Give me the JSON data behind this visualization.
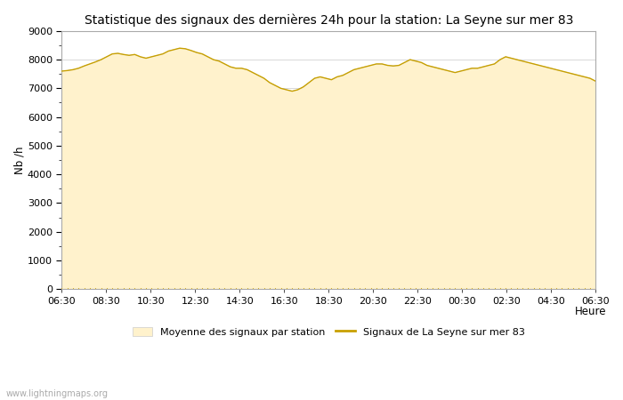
{
  "title": "Statistique des signaux des dernières 24h pour la station: La Seyne sur mer 83",
  "ylabel": "Nb /h",
  "xlabel": "Heure",
  "xlim_labels": [
    "06:30",
    "08:30",
    "10:30",
    "12:30",
    "14:30",
    "16:30",
    "18:30",
    "20:30",
    "22:30",
    "00:30",
    "02:30",
    "04:30",
    "06:30"
  ],
  "ylim": [
    0,
    9000
  ],
  "yticks": [
    0,
    1000,
    2000,
    3000,
    4000,
    5000,
    6000,
    7000,
    8000,
    9000
  ],
  "fill_color": "#FFF2CC",
  "fill_edge_color": "#CCCCCC",
  "line_color": "#C8A000",
  "bg_color": "#FFFFFF",
  "grid_color": "#C8C8C8",
  "watermark": "www.lightningmaps.org",
  "legend_fill_label": "Moyenne des signaux par station",
  "legend_line_label": "Signaux de La Seyne sur mer 83",
  "x_values": [
    0,
    1,
    2,
    3,
    4,
    5,
    6,
    7,
    8,
    9,
    10,
    11,
    12,
    13,
    14,
    15,
    16,
    17,
    18,
    19,
    20,
    21,
    22,
    23,
    24,
    25,
    26,
    27,
    28,
    29,
    30,
    31,
    32,
    33,
    34,
    35,
    36,
    37,
    38,
    39,
    40,
    41,
    42,
    43,
    44,
    45,
    46,
    47,
    48,
    49,
    50,
    51,
    52,
    53,
    54,
    55,
    56,
    57,
    58,
    59,
    60,
    61,
    62,
    63,
    64,
    65,
    66,
    67,
    68,
    69,
    70,
    71,
    72,
    73,
    74,
    75,
    76,
    77,
    78,
    79,
    80,
    81,
    82,
    83,
    84,
    85,
    86,
    87,
    88,
    89,
    90,
    91,
    92,
    93,
    94,
    95
  ],
  "y_fill": [
    7600,
    7620,
    7650,
    7700,
    7780,
    7850,
    7920,
    8000,
    8100,
    8200,
    8220,
    8180,
    8150,
    8180,
    8100,
    8050,
    8100,
    8150,
    8200,
    8300,
    8350,
    8400,
    8380,
    8320,
    8250,
    8200,
    8100,
    8000,
    7950,
    7850,
    7750,
    7700,
    7700,
    7650,
    7550,
    7450,
    7350,
    7200,
    7100,
    7000,
    6950,
    6900,
    6950,
    7050,
    7200,
    7350,
    7400,
    7350,
    7300,
    7400,
    7450,
    7550,
    7650,
    7700,
    7750,
    7800,
    7850,
    7850,
    7800,
    7780,
    7800,
    7900,
    8000,
    7950,
    7900,
    7800,
    7750,
    7700,
    7650,
    7600,
    7550,
    7600,
    7650,
    7700,
    7700,
    7750,
    7800,
    7850,
    8000,
    8100,
    8050,
    8000,
    7950,
    7900,
    7850,
    7800,
    7750,
    7700,
    7650,
    7600,
    7550,
    7500,
    7450,
    7400,
    7350,
    7250
  ],
  "y_line": [
    7600,
    7620,
    7650,
    7700,
    7780,
    7850,
    7920,
    8000,
    8100,
    8200,
    8220,
    8180,
    8150,
    8180,
    8100,
    8050,
    8100,
    8150,
    8200,
    8300,
    8350,
    8400,
    8380,
    8320,
    8250,
    8200,
    8100,
    8000,
    7950,
    7850,
    7750,
    7700,
    7700,
    7650,
    7550,
    7450,
    7350,
    7200,
    7100,
    7000,
    6950,
    6900,
    6950,
    7050,
    7200,
    7350,
    7400,
    7350,
    7300,
    7400,
    7450,
    7550,
    7650,
    7700,
    7750,
    7800,
    7850,
    7850,
    7800,
    7780,
    7800,
    7900,
    8000,
    7950,
    7900,
    7800,
    7750,
    7700,
    7650,
    7600,
    7550,
    7600,
    7650,
    7700,
    7700,
    7750,
    7800,
    7850,
    8000,
    8100,
    8050,
    8000,
    7950,
    7900,
    7850,
    7800,
    7750,
    7700,
    7650,
    7600,
    7550,
    7500,
    7450,
    7400,
    7350,
    7250
  ],
  "title_fontsize": 10,
  "tick_fontsize": 8,
  "label_fontsize": 8.5
}
